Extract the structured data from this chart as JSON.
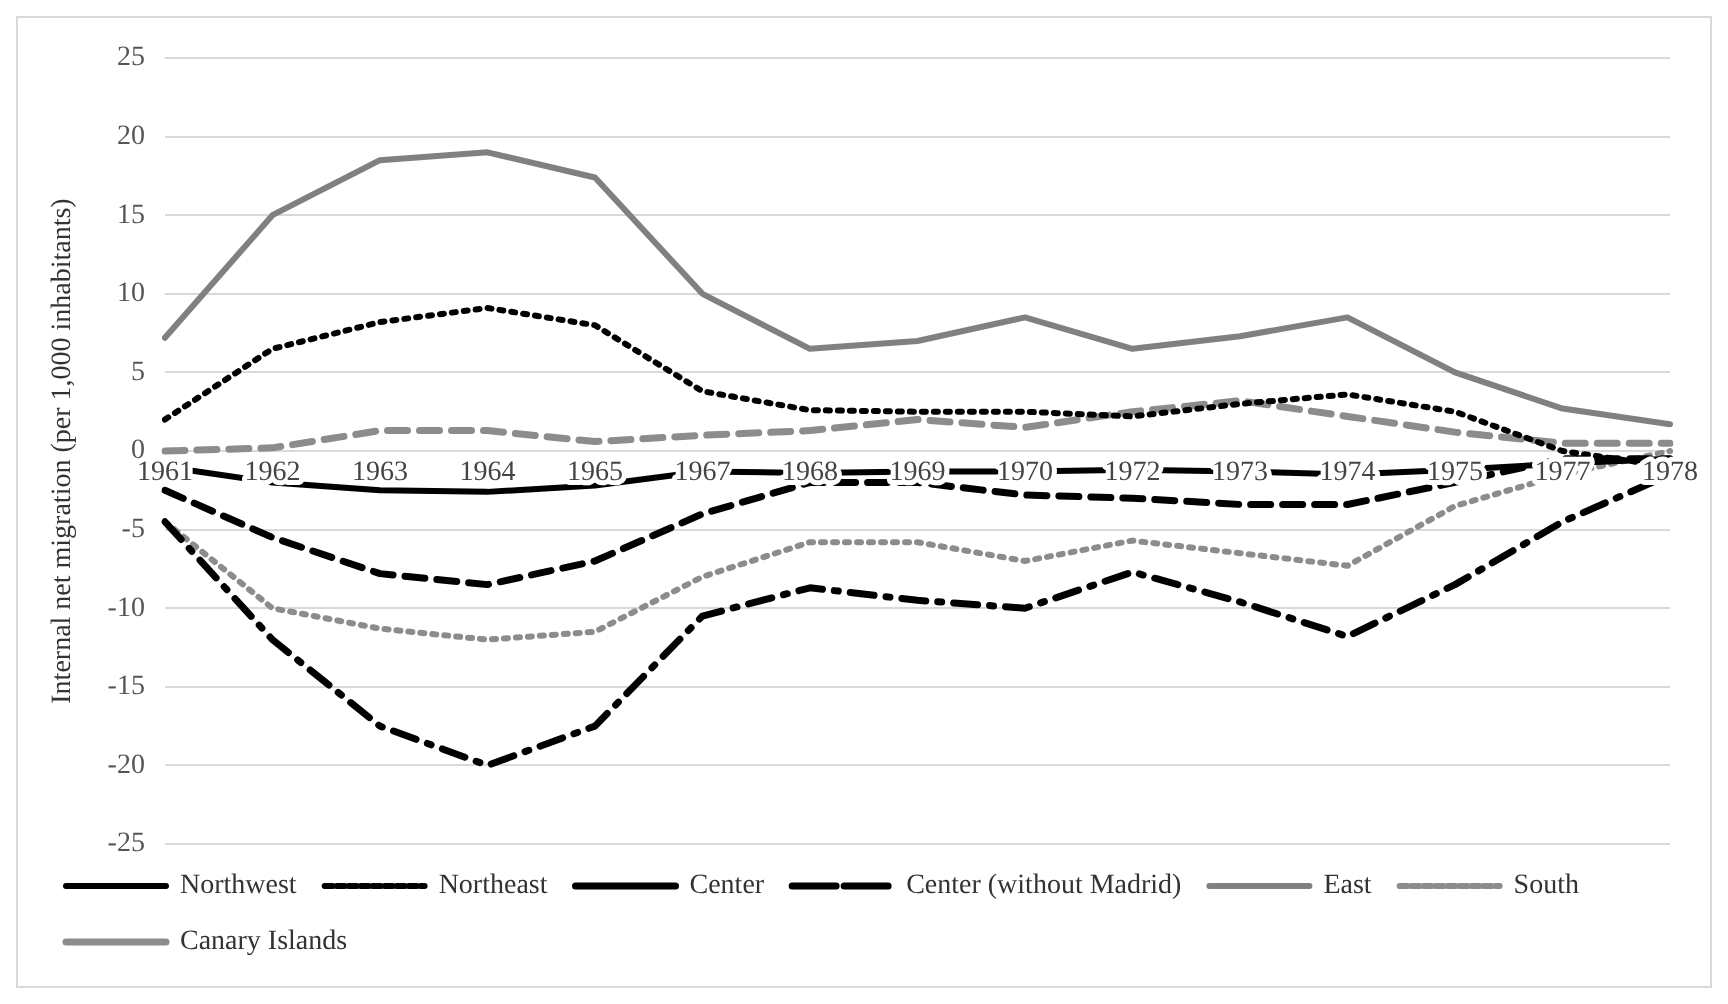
{
  "chart_data": {
    "type": "line",
    "ylabel": "Internal net migration (per 1,000 inhabitants)",
    "categories": [
      "1961",
      "1962",
      "1963",
      "1964",
      "1965",
      "1967",
      "1968",
      "1969",
      "1970",
      "1972",
      "1973",
      "1974",
      "1975",
      "1977",
      "1978"
    ],
    "ylim": [
      -25,
      25
    ],
    "yticks": [
      -25,
      -20,
      -15,
      -10,
      -5,
      0,
      5,
      10,
      15,
      20,
      25
    ],
    "grid": "y",
    "legend": "bottom",
    "marker": "none",
    "series": [
      {
        "name": "Northwest",
        "color": "#000000",
        "line_style": "solid",
        "values": [
          -1,
          -2,
          -2.5,
          -2.6,
          -2.2,
          -1.3,
          -1.4,
          -1.3,
          -1.3,
          -1.2,
          -1.3,
          -1.5,
          -1.2,
          -0.8,
          -0.5
        ]
      },
      {
        "name": "Northeast",
        "color": "#000000",
        "line_style": "dotted",
        "values": [
          2,
          6.5,
          8.2,
          9.1,
          8,
          3.8,
          2.6,
          2.5,
          2.5,
          2.2,
          3,
          3.6,
          2.5,
          0,
          -1
        ]
      },
      {
        "name": "Center",
        "color": "#000000",
        "line_style": "dashed",
        "values": [
          -2.5,
          -5.5,
          -7.8,
          -8.5,
          -7,
          -4,
          -2,
          -2,
          -2.8,
          -3,
          -3.4,
          -3.4,
          -2,
          -0.5,
          -0.5
        ]
      },
      {
        "name": "Center (without Madrid)",
        "color": "#000000",
        "line_style": "dashdot",
        "values": [
          -4.5,
          -12,
          -17.5,
          -20,
          -17.5,
          -10.5,
          -8.7,
          -9.5,
          -10,
          -7.7,
          -9.6,
          -11.8,
          -8.5,
          -4.5,
          -1.5
        ]
      },
      {
        "name": "East",
        "color": "#808080",
        "line_style": "solid",
        "values": [
          7.2,
          15,
          18.5,
          19,
          17.4,
          10,
          6.5,
          7,
          8.5,
          6.5,
          7.3,
          8.5,
          5,
          2.7,
          1.7
        ]
      },
      {
        "name": "South",
        "color": "#8c8c8c",
        "line_style": "dotted",
        "values": [
          -4.5,
          -10,
          -11.3,
          -12,
          -11.5,
          -8,
          -5.8,
          -5.8,
          -7,
          -5.7,
          -6.5,
          -7.3,
          -3.5,
          -1.5,
          0
        ]
      },
      {
        "name": "Canary Islands",
        "color": "#8c8c8c",
        "line_style": "dashed",
        "values": [
          0,
          0.2,
          1.3,
          1.3,
          0.6,
          1,
          1.3,
          2,
          1.5,
          2.5,
          3.2,
          2.2,
          1.2,
          0.5,
          0.5
        ]
      }
    ]
  }
}
